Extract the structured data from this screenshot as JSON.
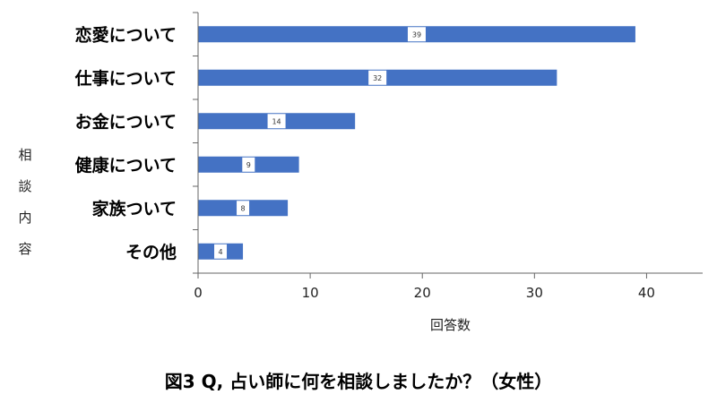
{
  "caption": "図3 Q, 占い師に何を相談しましたか？（女性）",
  "colors": {
    "bar": "#4472C4",
    "axis": "#666666",
    "label_bg": "#ffffff"
  },
  "chart_data": {
    "type": "bar",
    "orientation": "horizontal",
    "categories": [
      "恋愛について",
      "仕事について",
      "お金について",
      "健康について",
      "家族ついて",
      "その他"
    ],
    "values": [
      39,
      32,
      14,
      9,
      8,
      4
    ],
    "xlabel": "回答数",
    "ylabel": "相談内容",
    "xlim": [
      0,
      45
    ],
    "xticks": [
      0,
      10,
      20,
      30,
      40
    ],
    "grid": false,
    "legend": "none"
  }
}
